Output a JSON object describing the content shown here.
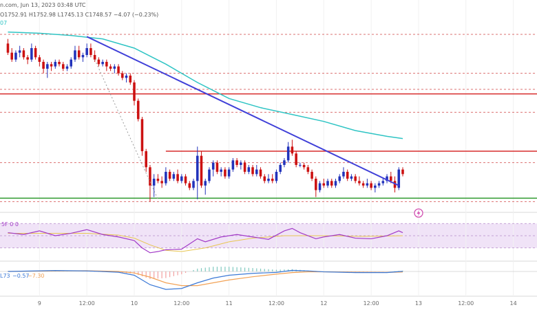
{
  "header": {
    "source_text": "n.com, Jun 13, 2023 03:48 UTC",
    "ohlc_text": "O1752.91  H1752.98  L1745.13  C1748.57  −4.07 (−0.23%)",
    "ma_fragment": "07"
  },
  "panes": {
    "rsi_legend": "5F  0  0",
    "macd_legend_a": "L73",
    "macd_legend_b": "−0.57",
    "macd_legend_c": "−7.30"
  },
  "colors": {
    "up": "#2233bb",
    "down": "#cc1111",
    "ma": "#2ec4c4",
    "trendline": "#3f3fd8",
    "resistance": "#d72b2b",
    "support": "#2e9a2e",
    "dashed_level": "#cc3333",
    "rsi_line": "#a23ac7",
    "rsi_band": "#f0e3f7",
    "macd_line": "#3a78d6",
    "signal_line": "#f2a154",
    "event_icon": "#d14fb0"
  },
  "icons": {
    "event_marker": "lightning-icon"
  },
  "chart_data": {
    "type": "candlestick",
    "x_ticks": [
      {
        "label": "9",
        "x": 8
      },
      {
        "label": "12:00",
        "x": 20
      },
      {
        "label": "10",
        "x": 32
      },
      {
        "label": "12:00",
        "x": 44
      },
      {
        "label": "11",
        "x": 56
      },
      {
        "label": "12:00",
        "x": 68
      },
      {
        "label": "12",
        "x": 80
      },
      {
        "label": "12:00",
        "x": 92
      },
      {
        "label": "13",
        "x": 104
      },
      {
        "label": "12:00",
        "x": 116
      },
      {
        "label": "14",
        "x": 128
      }
    ],
    "x_range": [
      -2,
      134
    ],
    "y_range": [
      1732,
      1810
    ],
    "candles": [
      [
        0,
        1803,
        1805,
        1798,
        1799
      ],
      [
        1,
        1799,
        1801,
        1795,
        1796
      ],
      [
        2,
        1796,
        1800,
        1795,
        1799
      ],
      [
        3,
        1799,
        1802,
        1797,
        1800
      ],
      [
        4,
        1800,
        1801,
        1796,
        1797
      ],
      [
        5,
        1797,
        1798,
        1794,
        1796
      ],
      [
        6,
        1796,
        1803,
        1795,
        1801
      ],
      [
        7,
        1801,
        1802,
        1796,
        1797
      ],
      [
        8,
        1797,
        1798,
        1793,
        1795
      ],
      [
        9,
        1795,
        1796,
        1790,
        1792
      ],
      [
        10,
        1792,
        1795,
        1788,
        1794
      ],
      [
        11,
        1794,
        1795,
        1791,
        1793
      ],
      [
        12,
        1793,
        1796,
        1792,
        1795
      ],
      [
        13,
        1795,
        1796,
        1793,
        1794
      ],
      [
        14,
        1794,
        1795,
        1791,
        1792
      ],
      [
        15,
        1792,
        1794,
        1791,
        1793
      ],
      [
        16,
        1793,
        1797,
        1792,
        1796
      ],
      [
        17,
        1796,
        1802,
        1795,
        1800
      ],
      [
        18,
        1800,
        1802,
        1796,
        1797
      ],
      [
        19,
        1797,
        1799,
        1795,
        1798
      ],
      [
        20,
        1798,
        1803,
        1797,
        1801
      ],
      [
        21,
        1801,
        1803,
        1797,
        1798
      ],
      [
        22,
        1798,
        1800,
        1795,
        1796
      ],
      [
        23,
        1796,
        1797,
        1793,
        1794
      ],
      [
        24,
        1794,
        1796,
        1793,
        1795
      ],
      [
        25,
        1795,
        1796,
        1791,
        1793
      ],
      [
        26,
        1793,
        1794,
        1791,
        1792
      ],
      [
        27,
        1792,
        1794,
        1790,
        1793
      ],
      [
        28,
        1793,
        1794,
        1789,
        1790
      ],
      [
        29,
        1790,
        1791,
        1787,
        1788
      ],
      [
        30,
        1788,
        1790,
        1786,
        1789
      ],
      [
        31,
        1789,
        1790,
        1785,
        1786
      ],
      [
        32,
        1786,
        1787,
        1776,
        1778
      ],
      [
        33,
        1778,
        1779,
        1769,
        1770
      ],
      [
        34,
        1770,
        1771,
        1754,
        1756
      ],
      [
        35,
        1756,
        1757,
        1747,
        1749
      ],
      [
        36,
        1749,
        1750,
        1734,
        1741
      ],
      [
        37,
        1741,
        1746,
        1736,
        1744
      ],
      [
        38,
        1744,
        1746,
        1742,
        1743
      ],
      [
        39,
        1743,
        1745,
        1740,
        1742
      ],
      [
        40,
        1742,
        1749,
        1741,
        1747
      ],
      [
        41,
        1747,
        1748,
        1743,
        1744
      ],
      [
        42,
        1744,
        1747,
        1743,
        1746
      ],
      [
        43,
        1746,
        1748,
        1742,
        1743
      ],
      [
        44,
        1743,
        1746,
        1742,
        1745
      ],
      [
        45,
        1745,
        1746,
        1741,
        1742
      ],
      [
        46,
        1742,
        1743,
        1739,
        1740
      ],
      [
        47,
        1740,
        1744,
        1739,
        1743
      ],
      [
        48,
        1743,
        1758,
        1735,
        1754
      ],
      [
        49,
        1754,
        1756,
        1740,
        1741
      ],
      [
        50,
        1741,
        1744,
        1737,
        1743
      ],
      [
        51,
        1743,
        1749,
        1742,
        1748
      ],
      [
        52,
        1748,
        1752,
        1745,
        1751
      ],
      [
        53,
        1751,
        1752,
        1746,
        1747
      ],
      [
        54,
        1747,
        1749,
        1745,
        1748
      ],
      [
        55,
        1748,
        1749,
        1744,
        1745
      ],
      [
        56,
        1745,
        1749,
        1744,
        1748
      ],
      [
        57,
        1748,
        1753,
        1747,
        1752
      ],
      [
        58,
        1752,
        1753,
        1749,
        1750
      ],
      [
        59,
        1750,
        1752,
        1748,
        1751
      ],
      [
        60,
        1751,
        1752,
        1746,
        1747
      ],
      [
        61,
        1747,
        1750,
        1746,
        1749
      ],
      [
        62,
        1749,
        1750,
        1745,
        1746
      ],
      [
        63,
        1746,
        1750,
        1745,
        1748
      ],
      [
        64,
        1748,
        1749,
        1744,
        1745
      ],
      [
        65,
        1745,
        1746,
        1742,
        1743
      ],
      [
        66,
        1743,
        1746,
        1742,
        1744
      ],
      [
        67,
        1744,
        1746,
        1742,
        1743
      ],
      [
        68,
        1743,
        1748,
        1742,
        1747
      ],
      [
        69,
        1747,
        1751,
        1746,
        1750
      ],
      [
        70,
        1750,
        1753,
        1749,
        1752
      ],
      [
        71,
        1752,
        1760,
        1751,
        1758
      ],
      [
        72,
        1758,
        1761,
        1754,
        1755
      ],
      [
        73,
        1755,
        1756,
        1749,
        1750
      ],
      [
        74,
        1750,
        1751,
        1749,
        1750
      ],
      [
        75,
        1750,
        1751,
        1748,
        1749
      ],
      [
        76,
        1749,
        1750,
        1746,
        1747
      ],
      [
        77,
        1747,
        1748,
        1743,
        1744
      ],
      [
        78,
        1744,
        1745,
        1736,
        1739
      ],
      [
        79,
        1739,
        1743,
        1738,
        1742
      ],
      [
        80,
        1742,
        1744,
        1740,
        1741
      ],
      [
        81,
        1741,
        1744,
        1740,
        1743
      ],
      [
        82,
        1743,
        1744,
        1740,
        1741
      ],
      [
        83,
        1741,
        1744,
        1740,
        1743
      ],
      [
        84,
        1743,
        1746,
        1742,
        1745
      ],
      [
        85,
        1745,
        1749,
        1744,
        1747
      ],
      [
        86,
        1747,
        1748,
        1743,
        1744
      ],
      [
        87,
        1744,
        1746,
        1743,
        1745
      ],
      [
        88,
        1745,
        1746,
        1742,
        1743
      ],
      [
        89,
        1743,
        1745,
        1741,
        1742
      ],
      [
        90,
        1742,
        1743,
        1740,
        1741
      ],
      [
        91,
        1741,
        1744,
        1740,
        1742
      ],
      [
        92,
        1742,
        1743,
        1739,
        1740
      ],
      [
        93,
        1740,
        1742,
        1738,
        1741
      ],
      [
        94,
        1741,
        1743,
        1740,
        1742
      ],
      [
        95,
        1742,
        1744,
        1741,
        1743
      ],
      [
        96,
        1743,
        1746,
        1742,
        1745
      ],
      [
        97,
        1745,
        1747,
        1742,
        1743
      ],
      [
        98,
        1743,
        1745,
        1738,
        1740
      ],
      [
        99,
        1740,
        1749,
        1739,
        1748
      ],
      [
        100,
        1748,
        1749,
        1745,
        1746
      ]
    ],
    "moving_average": [
      [
        0,
        1808
      ],
      [
        8,
        1807.5
      ],
      [
        16,
        1806.5
      ],
      [
        24,
        1805
      ],
      [
        32,
        1801
      ],
      [
        40,
        1794
      ],
      [
        48,
        1786
      ],
      [
        56,
        1779
      ],
      [
        64,
        1775
      ],
      [
        72,
        1772
      ],
      [
        80,
        1769
      ],
      [
        88,
        1765
      ],
      [
        96,
        1762.5
      ],
      [
        100,
        1761.5
      ]
    ],
    "trendline": {
      "start": [
        20,
        1806
      ],
      "end": [
        99,
        1741
      ]
    },
    "dashed_drop": {
      "start": [
        22,
        1796
      ],
      "end": [
        38,
        1735
      ]
    },
    "resistance_levels": [
      {
        "y": 1781,
        "x_from": -2,
        "x_to": 134
      },
      {
        "y": 1756,
        "x_from": 40,
        "x_to": 134
      }
    ],
    "support_level": {
      "y": 1735.5,
      "x_from": -2,
      "x_to": 134
    },
    "dashed_levels": [
      1807,
      1790,
      1783,
      1773,
      1751,
      1734
    ],
    "rsi": {
      "y_range": [
        15,
        85
      ],
      "band": [
        30,
        70
      ],
      "values": [
        [
          0,
          55
        ],
        [
          4,
          52
        ],
        [
          8,
          58
        ],
        [
          12,
          50
        ],
        [
          16,
          54
        ],
        [
          20,
          60
        ],
        [
          24,
          52
        ],
        [
          28,
          48
        ],
        [
          32,
          42
        ],
        [
          34,
          30
        ],
        [
          36,
          22
        ],
        [
          38,
          24
        ],
        [
          40,
          27
        ],
        [
          44,
          28
        ],
        [
          48,
          45
        ],
        [
          50,
          40
        ],
        [
          54,
          48
        ],
        [
          58,
          52
        ],
        [
          62,
          48
        ],
        [
          66,
          44
        ],
        [
          70,
          58
        ],
        [
          72,
          62
        ],
        [
          74,
          55
        ],
        [
          78,
          45
        ],
        [
          80,
          48
        ],
        [
          84,
          52
        ],
        [
          88,
          46
        ],
        [
          92,
          45
        ],
        [
          96,
          50
        ],
        [
          99,
          58
        ],
        [
          100,
          55
        ]
      ],
      "signal": [
        [
          0,
          54
        ],
        [
          10,
          54
        ],
        [
          20,
          54
        ],
        [
          28,
          51
        ],
        [
          32,
          46
        ],
        [
          36,
          35
        ],
        [
          40,
          26
        ],
        [
          44,
          24
        ],
        [
          50,
          30
        ],
        [
          56,
          40
        ],
        [
          62,
          46
        ],
        [
          70,
          50
        ],
        [
          80,
          50
        ],
        [
          90,
          49
        ],
        [
          100,
          50
        ]
      ]
    },
    "macd": {
      "y_range": [
        -12,
        4
      ],
      "macd_line": [
        [
          0,
          0
        ],
        [
          12,
          0.5
        ],
        [
          20,
          0.3
        ],
        [
          28,
          -0.4
        ],
        [
          32,
          -2
        ],
        [
          36,
          -7
        ],
        [
          40,
          -9.5
        ],
        [
          44,
          -9
        ],
        [
          48,
          -6
        ],
        [
          52,
          -3.5
        ],
        [
          56,
          -2
        ],
        [
          62,
          -1
        ],
        [
          68,
          -0.5
        ],
        [
          72,
          0.6
        ],
        [
          76,
          0.3
        ],
        [
          80,
          -0.2
        ],
        [
          88,
          -0.6
        ],
        [
          96,
          -0.6
        ],
        [
          100,
          0.1
        ]
      ],
      "signal_line": [
        [
          0,
          0
        ],
        [
          12,
          0.3
        ],
        [
          20,
          0.4
        ],
        [
          28,
          0
        ],
        [
          32,
          -0.8
        ],
        [
          36,
          -3
        ],
        [
          40,
          -6
        ],
        [
          44,
          -7.5
        ],
        [
          48,
          -7.5
        ],
        [
          52,
          -6
        ],
        [
          56,
          -4.5
        ],
        [
          62,
          -2.8
        ],
        [
          68,
          -1.4
        ],
        [
          72,
          -0.6
        ],
        [
          76,
          -0.2
        ],
        [
          80,
          -0.2
        ],
        [
          88,
          -0.4
        ],
        [
          96,
          -0.5
        ],
        [
          100,
          -0.3
        ]
      ]
    }
  }
}
